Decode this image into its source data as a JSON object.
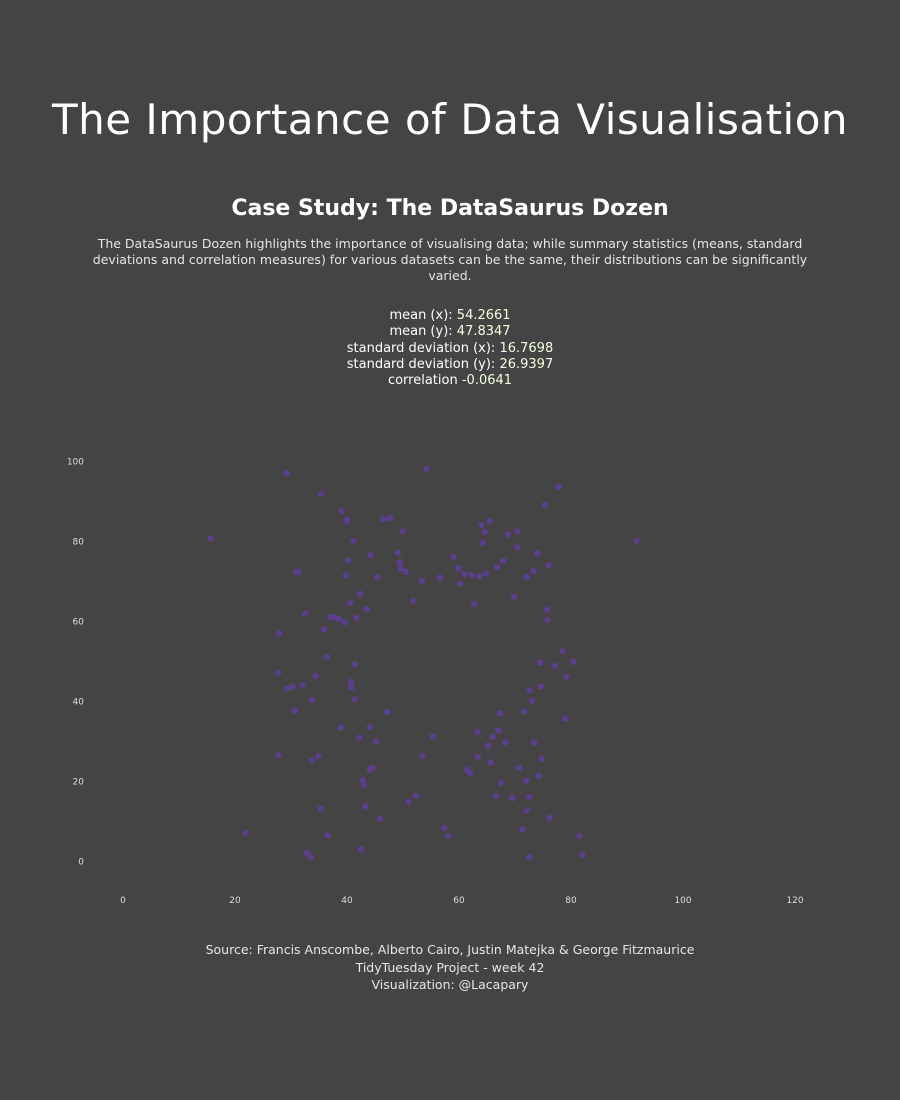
{
  "title": "The Importance of Data Visualisation",
  "subtitle": "Case Study: The DataSaurus Dozen",
  "description": "The DataSaurus Dozen highlights the importance of visualising data; while summary statistics (means, standard deviations and correlation measures) for various datasets can be the same, their distributions can be significantly varied.",
  "stats": [
    {
      "label": "mean (x):",
      "value": "54.2661"
    },
    {
      "label": "mean (y):",
      "value": "47.8347"
    },
    {
      "label": "standard deviation (x):",
      "value": "16.7698"
    },
    {
      "label": "standard deviation (y):",
      "value": "26.9397"
    },
    {
      "label": "correlation",
      "value": "-0.0641"
    }
  ],
  "footer": [
    "Source: Francis Anscombe, Alberto Cairo, Justin Matejka & George Fitzmaurice",
    "TidyTuesday Project - week 42",
    "Visualization: @Lacapary"
  ],
  "colors": {
    "background": "#444444",
    "point": "#5b3f8c",
    "axis_text": "#dddddd"
  },
  "chart_data": {
    "type": "scatter",
    "title": "",
    "xlabel": "",
    "ylabel": "",
    "xlim": [
      -5,
      125
    ],
    "ylim": [
      -5,
      102
    ],
    "x_ticks": [
      0,
      20,
      40,
      60,
      80,
      100,
      120
    ],
    "y_ticks": [
      0,
      20,
      40,
      60,
      80,
      100
    ],
    "grid": false,
    "legend": "none",
    "points": [
      [
        15.6,
        80.7
      ],
      [
        21.9,
        7.0
      ],
      [
        27.9,
        56.9
      ],
      [
        27.7,
        47.1
      ],
      [
        27.8,
        26.5
      ],
      [
        29.3,
        43.1
      ],
      [
        30.3,
        43.6
      ],
      [
        30.7,
        37.6
      ],
      [
        31.0,
        72.2
      ],
      [
        31.3,
        72.4
      ],
      [
        32.1,
        44.0
      ],
      [
        32.5,
        61.9
      ],
      [
        32.9,
        2.0
      ],
      [
        33.5,
        1.0
      ],
      [
        33.7,
        25.2
      ],
      [
        34.4,
        46.2
      ],
      [
        34.9,
        26.2
      ],
      [
        35.3,
        13.1
      ],
      [
        35.9,
        57.8
      ],
      [
        36.4,
        51.1
      ],
      [
        36.5,
        6.4
      ],
      [
        37.1,
        60.9
      ],
      [
        37.7,
        61.0
      ],
      [
        38.9,
        33.4
      ],
      [
        39.6,
        59.7
      ],
      [
        39.8,
        71.4
      ],
      [
        40.2,
        75.1
      ],
      [
        40.6,
        64.6
      ],
      [
        40.8,
        43.4
      ],
      [
        41.3,
        40.4
      ],
      [
        41.4,
        49.1
      ],
      [
        42.2,
        30.8
      ],
      [
        42.5,
        2.9
      ],
      [
        42.8,
        20.1
      ],
      [
        43.0,
        19.0
      ],
      [
        43.3,
        13.7
      ],
      [
        44.1,
        22.9
      ],
      [
        44.6,
        23.4
      ],
      [
        45.1,
        29.9
      ],
      [
        45.4,
        71.0
      ],
      [
        45.9,
        10.6
      ],
      [
        47.2,
        37.3
      ],
      [
        47.7,
        85.8
      ],
      [
        49.1,
        77.1
      ],
      [
        49.4,
        74.6
      ],
      [
        49.6,
        73.1
      ],
      [
        49.9,
        82.4
      ],
      [
        50.5,
        72.3
      ],
      [
        51.0,
        14.8
      ],
      [
        51.8,
        65.0
      ],
      [
        52.3,
        16.3
      ],
      [
        53.5,
        26.3
      ],
      [
        54.2,
        98.0
      ],
      [
        55.4,
        31.2
      ],
      [
        56.6,
        70.9
      ],
      [
        57.4,
        8.3
      ],
      [
        58.1,
        6.3
      ],
      [
        59.0,
        76.0
      ],
      [
        59.8,
        73.2
      ],
      [
        60.2,
        69.4
      ],
      [
        60.9,
        71.7
      ],
      [
        62.0,
        22.0
      ],
      [
        62.7,
        64.3
      ],
      [
        63.3,
        32.2
      ],
      [
        63.4,
        26.0
      ],
      [
        64.0,
        84.0
      ],
      [
        64.2,
        79.6
      ],
      [
        64.6,
        82.3
      ],
      [
        64.8,
        71.9
      ],
      [
        65.2,
        28.9
      ],
      [
        65.7,
        24.6
      ],
      [
        66.0,
        31.1
      ],
      [
        66.6,
        16.2
      ],
      [
        67.0,
        32.7
      ],
      [
        67.5,
        19.5
      ],
      [
        68.3,
        29.7
      ],
      [
        68.7,
        81.7
      ],
      [
        69.5,
        15.7
      ],
      [
        69.8,
        66.1
      ],
      [
        70.4,
        82.4
      ],
      [
        70.7,
        23.3
      ],
      [
        71.3,
        7.9
      ],
      [
        72.0,
        20.1
      ],
      [
        72.1,
        12.6
      ],
      [
        72.5,
        16.0
      ],
      [
        72.6,
        42.7
      ],
      [
        73.4,
        29.6
      ],
      [
        74.0,
        76.9
      ],
      [
        74.2,
        21.3
      ],
      [
        74.5,
        49.6
      ],
      [
        74.8,
        25.6
      ],
      [
        75.3,
        89.0
      ],
      [
        75.7,
        62.8
      ],
      [
        76.0,
        73.9
      ],
      [
        76.2,
        10.8
      ],
      [
        77.1,
        48.8
      ],
      [
        77.8,
        93.5
      ],
      [
        78.5,
        52.5
      ],
      [
        79.0,
        35.6
      ],
      [
        79.2,
        46.1
      ],
      [
        80.5,
        49.8
      ],
      [
        81.5,
        6.2
      ],
      [
        82.0,
        1.5
      ],
      [
        91.7,
        80.0
      ],
      [
        29.2,
        96.9
      ],
      [
        35.4,
        91.8
      ],
      [
        39.0,
        87.5
      ],
      [
        39.9,
        84.9
      ],
      [
        40.0,
        85.4
      ],
      [
        41.1,
        80.0
      ],
      [
        46.5,
        85.5
      ],
      [
        53.4,
        70.0
      ],
      [
        62.2,
        71.5
      ],
      [
        65.5,
        85.0
      ],
      [
        67.9,
        75.1
      ],
      [
        70.4,
        78.4
      ],
      [
        75.8,
        60.2
      ],
      [
        72.1,
        71.0
      ],
      [
        73.3,
        72.5
      ],
      [
        38.5,
        60.5
      ],
      [
        41.7,
        60.8
      ],
      [
        42.4,
        66.8
      ],
      [
        43.5,
        63.0
      ],
      [
        44.2,
        76.5
      ],
      [
        40.7,
        44.8
      ],
      [
        44.1,
        33.5
      ],
      [
        66.8,
        73.4
      ],
      [
        74.6,
        43.6
      ],
      [
        71.6,
        37.4
      ],
      [
        73.0,
        40.0
      ],
      [
        63.6,
        71.2
      ],
      [
        72.5,
        1.0
      ],
      [
        33.7,
        40.2
      ],
      [
        61.4,
        22.8
      ],
      [
        67.4,
        36.9
      ]
    ]
  }
}
